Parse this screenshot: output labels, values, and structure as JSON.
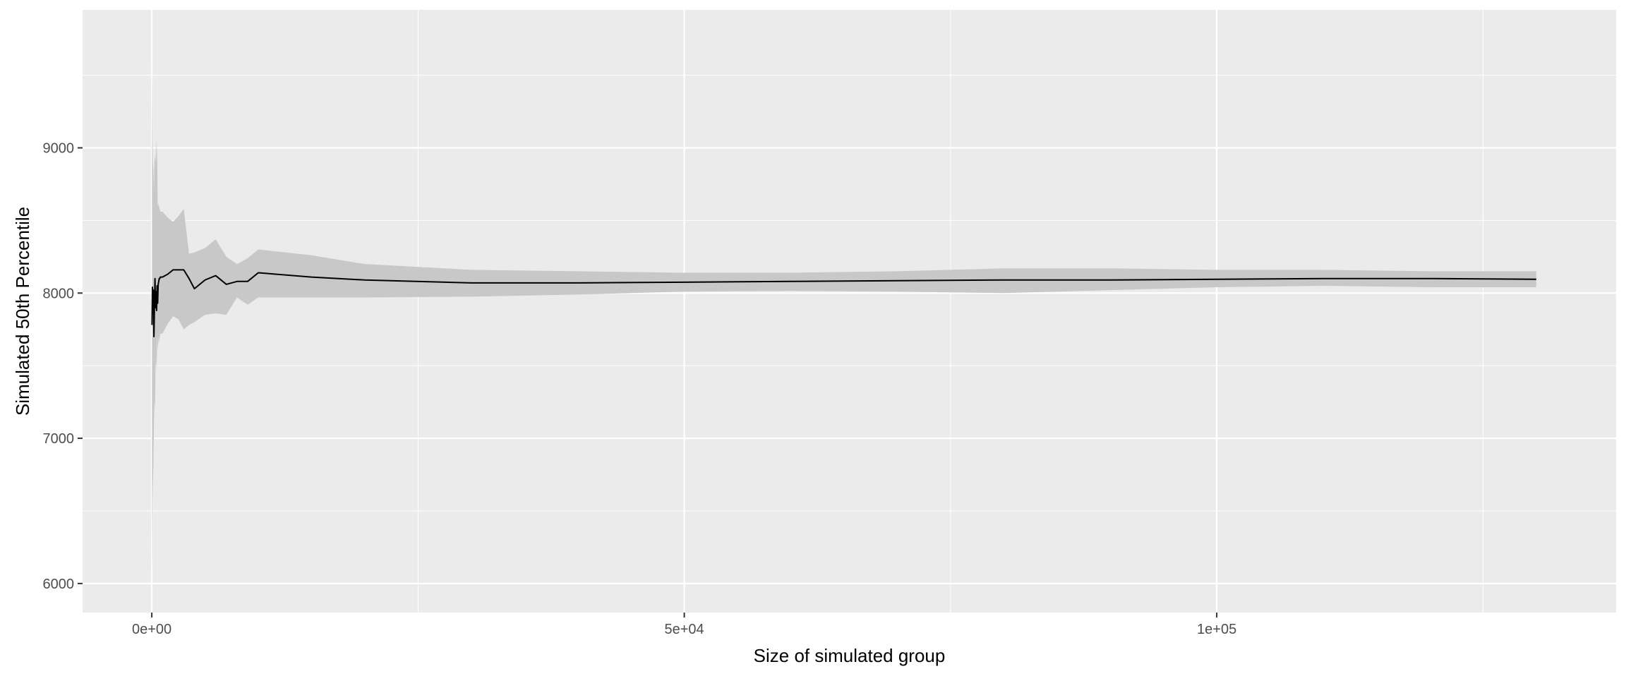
{
  "chart_data": {
    "type": "line",
    "title": "",
    "xlabel": "Size of simulated group",
    "ylabel": "Simulated 50th Percentile",
    "xlim": [
      -6500,
      137500
    ],
    "ylim": [
      5800,
      9950
    ],
    "x_ticks": [
      {
        "value": 0,
        "label": "0e+00"
      },
      {
        "value": 50000,
        "label": "5e+04"
      },
      {
        "value": 100000,
        "label": "1e+05"
      }
    ],
    "x_minor_ticks": [
      25000,
      75000,
      125000
    ],
    "y_ticks": [
      {
        "value": 6000,
        "label": "6000"
      },
      {
        "value": 7000,
        "label": "7000"
      },
      {
        "value": 8000,
        "label": "8000"
      },
      {
        "value": 9000,
        "label": "9000"
      }
    ],
    "y_minor_ticks": [
      6500,
      7500,
      8500,
      9500
    ],
    "grid": true,
    "colors": {
      "panel": "#ebebeb",
      "grid": "#ffffff",
      "ribbon": "#c8c8c8",
      "line": "#000000"
    },
    "series": [
      {
        "x": [
          20,
          60,
          100,
          150,
          200,
          250,
          300,
          350,
          400,
          450,
          500,
          550,
          600,
          650,
          700,
          750,
          800,
          900,
          1000,
          1500,
          2000,
          2500,
          3000,
          3500,
          4000,
          5000,
          6000,
          7000,
          8000,
          9000,
          10000,
          15000,
          20000,
          30000,
          40000,
          50000,
          60000,
          70000,
          80000,
          90000,
          100000,
          110000,
          120000,
          130000
        ],
        "y": [
          7780,
          8040,
          7940,
          8020,
          7700,
          7900,
          8100,
          7900,
          8010,
          7880,
          8050,
          7930,
          8060,
          8080,
          8100,
          8100,
          8110,
          8110,
          8110,
          8130,
          8160,
          8160,
          8160,
          8100,
          8030,
          8090,
          8120,
          8060,
          8080,
          8080,
          8140,
          8110,
          8090,
          8070,
          8070,
          8075,
          8080,
          8085,
          8090,
          8090,
          8095,
          8100,
          8100,
          8095
        ],
        "lower": [
          6000,
          6550,
          6700,
          6800,
          7100,
          7250,
          7200,
          7500,
          7550,
          7450,
          7700,
          7600,
          7650,
          7700,
          7650,
          7700,
          7720,
          7720,
          7720,
          7790,
          7840,
          7820,
          7750,
          7780,
          7800,
          7850,
          7860,
          7850,
          7970,
          7920,
          7970,
          7970,
          7970,
          7975,
          7990,
          8010,
          8015,
          8010,
          8000,
          8020,
          8040,
          8050,
          8040,
          8040
        ],
        "upper": [
          9600,
          9100,
          8900,
          8850,
          8700,
          8900,
          8950,
          8900,
          9060,
          8900,
          9040,
          8600,
          8620,
          8600,
          8590,
          8580,
          8560,
          8560,
          8560,
          8520,
          8490,
          8530,
          8580,
          8270,
          8280,
          8310,
          8370,
          8250,
          8200,
          8240,
          8300,
          8260,
          8200,
          8160,
          8150,
          8140,
          8140,
          8150,
          8170,
          8170,
          8160,
          8160,
          8150,
          8150
        ]
      }
    ]
  }
}
